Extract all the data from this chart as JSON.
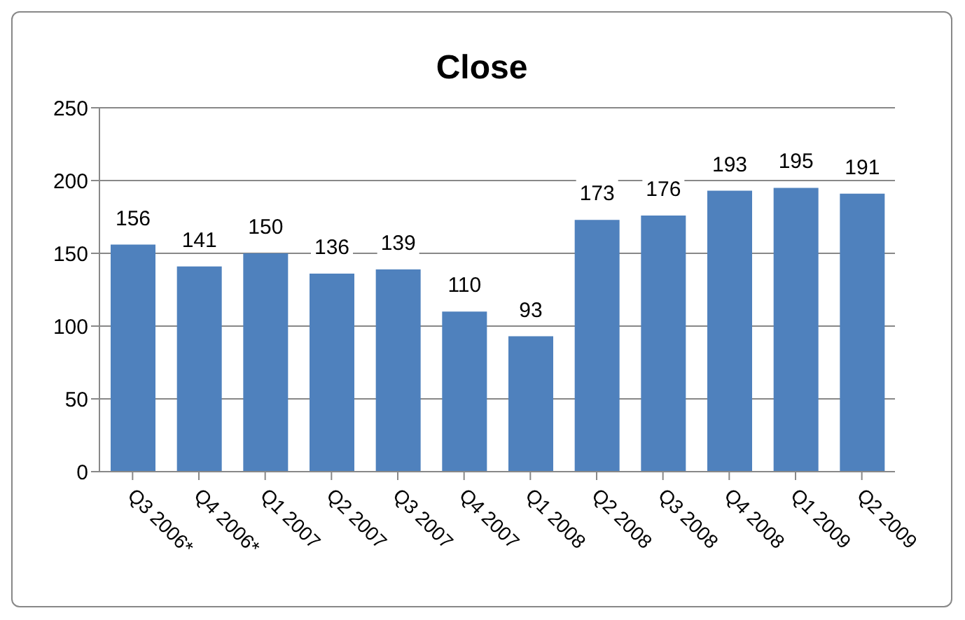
{
  "chart_data": {
    "type": "bar",
    "title": "Close",
    "categories": [
      "Q3 2006*",
      "Q4 2006*",
      "Q1 2007",
      "Q2 2007",
      "Q3 2007",
      "Q4 2007",
      "Q1 2008",
      "Q2 2008",
      "Q3 2008",
      "Q4 2008",
      "Q1 2009",
      "Q2 2009"
    ],
    "values": [
      156,
      141,
      150,
      136,
      139,
      110,
      93,
      173,
      176,
      193,
      195,
      191
    ],
    "color": "#4f81bd",
    "ylim": [
      0,
      250
    ],
    "yticks": [
      0,
      50,
      100,
      150,
      200,
      250
    ],
    "grid": "y",
    "data_labels": true
  }
}
